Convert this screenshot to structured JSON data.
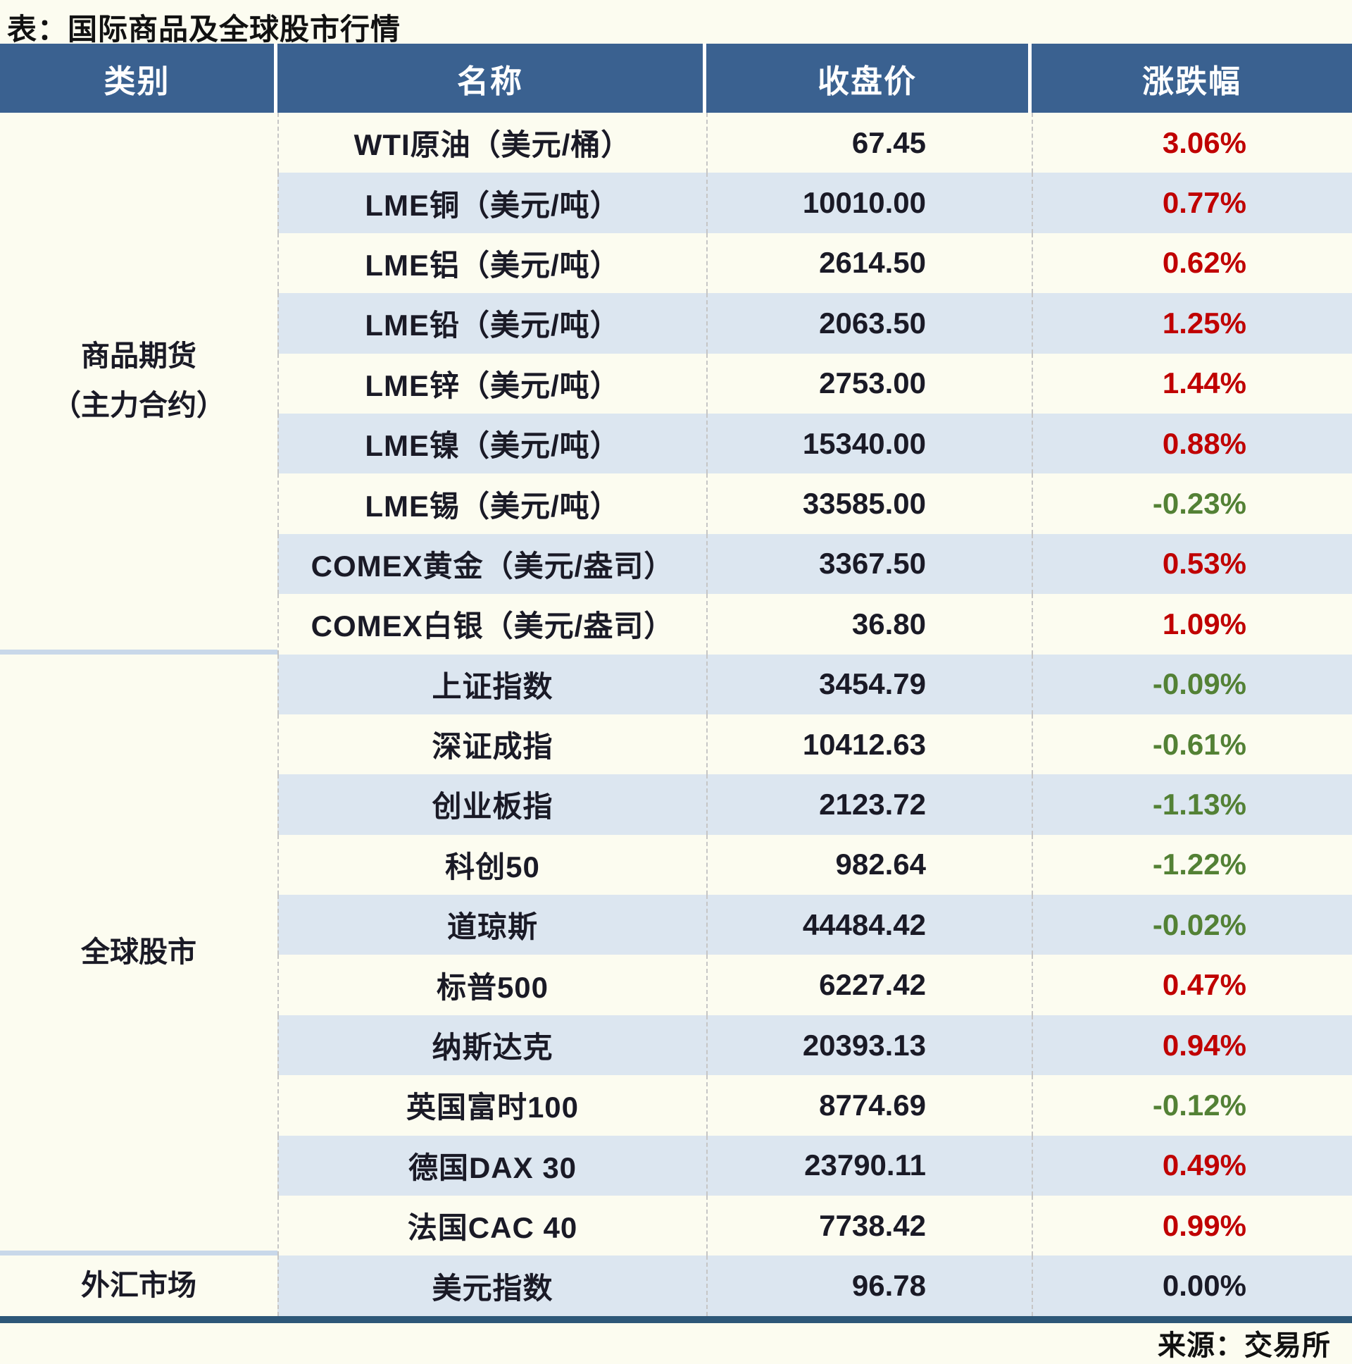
{
  "title": "表：国际商品及全球股市行情",
  "table": {
    "header": [
      "类别",
      "名称",
      "收盘价",
      "涨跌幅"
    ],
    "categories": [
      {
        "line1": "商品期货",
        "line2": "（主力合约）"
      },
      {
        "line1": "全球股市"
      },
      {
        "line1": "外汇市场"
      }
    ],
    "rows": [
      {
        "name": "WTI原油（美元/桶）",
        "close": "67.45",
        "change": "3.06%",
        "change_color": "#C00000"
      },
      {
        "name": "LME铜（美元/吨）",
        "close": "10010.00",
        "change": "0.77%",
        "change_color": "#C00000"
      },
      {
        "name": "LME铝（美元/吨）",
        "close": "2614.50",
        "change": "0.62%",
        "change_color": "#C00000"
      },
      {
        "name": "LME铅（美元/吨）",
        "close": "2063.50",
        "change": "1.25%",
        "change_color": "#C00000"
      },
      {
        "name": "LME锌（美元/吨）",
        "close": "2753.00",
        "change": "1.44%",
        "change_color": "#C00000"
      },
      {
        "name": "LME镍（美元/吨）",
        "close": "15340.00",
        "change": "0.88%",
        "change_color": "#C00000"
      },
      {
        "name": "LME锡（美元/吨）",
        "close": "33585.00",
        "change": "-0.23%",
        "change_color": "#538135"
      },
      {
        "name": "COMEX黄金（美元/盎司）",
        "close": "3367.50",
        "change": "0.53%",
        "change_color": "#C00000"
      },
      {
        "name": "COMEX白银（美元/盎司）",
        "close": "36.80",
        "change": "1.09%",
        "change_color": "#C00000"
      },
      {
        "name": "上证指数",
        "close": "3454.79",
        "change": "-0.09%",
        "change_color": "#538135"
      },
      {
        "name": "深证成指",
        "close": "10412.63",
        "change": "-0.61%",
        "change_color": "#538135"
      },
      {
        "name": "创业板指",
        "close": "2123.72",
        "change": "-1.13%",
        "change_color": "#538135"
      },
      {
        "name": "科创50",
        "close": "982.64",
        "change": "-1.22%",
        "change_color": "#538135"
      },
      {
        "name": "道琼斯",
        "close": "44484.42",
        "change": "-0.02%",
        "change_color": "#538135"
      },
      {
        "name": "标普500",
        "close": "6227.42",
        "change": "0.47%",
        "change_color": "#C00000"
      },
      {
        "name": "纳斯达克",
        "close": "20393.13",
        "change": "0.94%",
        "change_color": "#C00000"
      },
      {
        "name": "英国富时100",
        "close": "8774.69",
        "change": "-0.12%",
        "change_color": "#538135"
      },
      {
        "name": "德国DAX 30",
        "close": "23790.11",
        "change": "0.49%",
        "change_color": "#C00000"
      },
      {
        "name": "法国CAC 40",
        "close": "7738.42",
        "change": "0.99%",
        "change_color": "#C00000"
      },
      {
        "name": "美元指数",
        "close": "96.78",
        "change": "0.00%",
        "change_color": "#1A1A26"
      }
    ]
  },
  "colors": {
    "header_bg": "#3A6190",
    "row_alt_bg": "#DCE6F0",
    "up": "#C00000",
    "down": "#538135",
    "bottom_rule": "#2D5778"
  },
  "footer": {
    "source_label": "来源：交易所"
  }
}
